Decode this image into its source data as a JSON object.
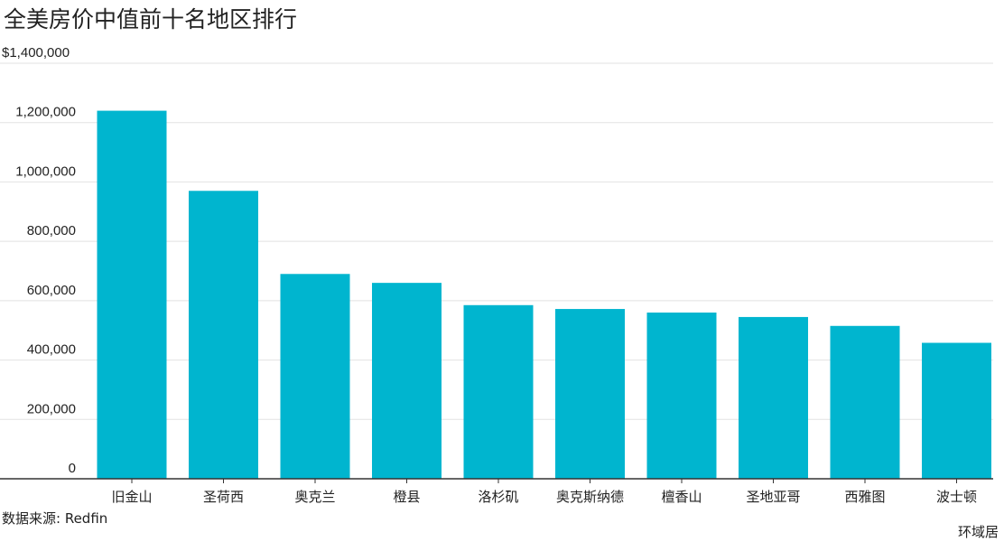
{
  "chart_data": {
    "type": "bar",
    "title": "全美房价中值前十名地区排行",
    "categories": [
      "旧金山",
      "圣荷西",
      "奥克兰",
      "橙县",
      "洛杉矶",
      "奥克斯纳德",
      "檀香山",
      "圣地亚哥",
      "西雅图",
      "波士顿"
    ],
    "values": [
      1240000,
      970000,
      690000,
      660000,
      585000,
      572000,
      560000,
      545000,
      515000,
      458000
    ],
    "ylim": [
      0,
      1400000
    ],
    "yticks": [
      0,
      200000,
      400000,
      600000,
      800000,
      1000000,
      1200000,
      1400000
    ],
    "ytick_labels": [
      "0",
      "200,000",
      "400,000",
      "600,000",
      "800,000",
      "1,000,000",
      "1,200,000",
      "$1,400,000"
    ],
    "grid": true,
    "bar_color": "#00b5cf",
    "source": "数据来源: Redfin",
    "credit": "环域居"
  }
}
